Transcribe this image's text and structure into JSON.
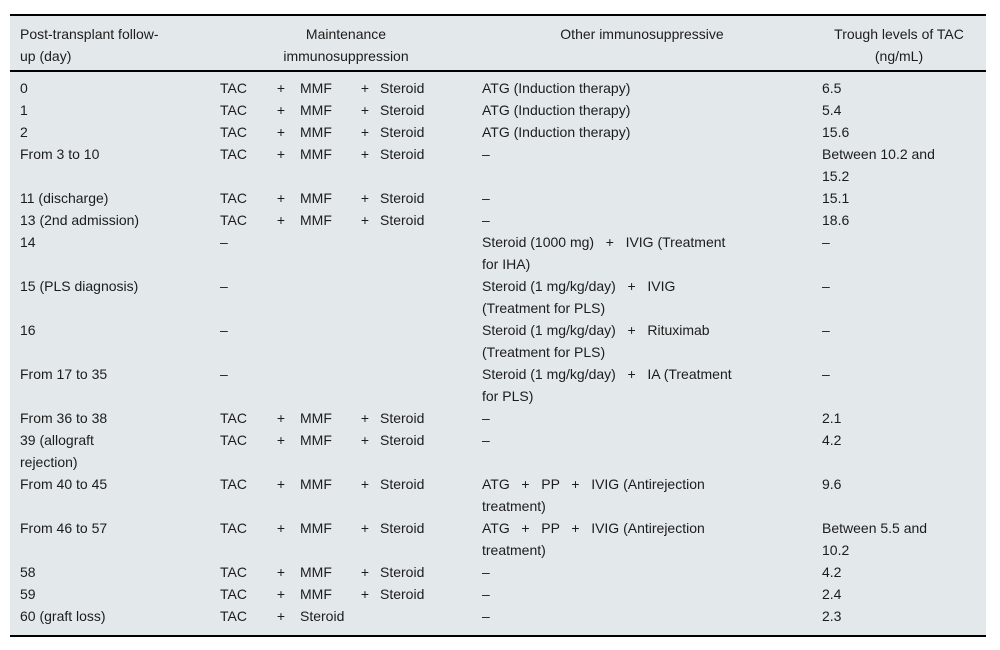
{
  "table": {
    "colors": {
      "background": "#e3e9eb",
      "rule": "#000000",
      "text": "#1c1c1c"
    },
    "header": {
      "day": "Post-transplant follow-\nup (day)",
      "maintenance": "Maintenance\nimmunosuppression",
      "other": "Other immunosuppressive",
      "trough": "Trough levels of TAC\n(ng/mL)"
    },
    "rows": [
      {
        "day": "0",
        "maintenance": [
          "TAC",
          "+",
          "MMF",
          "+",
          "Steroid"
        ],
        "other": "ATG (Induction therapy)",
        "trough": "6.5"
      },
      {
        "day": "1",
        "maintenance": [
          "TAC",
          "+",
          "MMF",
          "+",
          "Steroid"
        ],
        "other": "ATG (Induction therapy)",
        "trough": "5.4"
      },
      {
        "day": "2",
        "maintenance": [
          "TAC",
          "+",
          "MMF",
          "+",
          "Steroid"
        ],
        "other": "ATG (Induction therapy)",
        "trough": "15.6"
      },
      {
        "day": "From 3 to 10",
        "maintenance": [
          "TAC",
          "+",
          "MMF",
          "+",
          "Steroid"
        ],
        "other": "–",
        "trough": "Between 10.2 and\n15.2"
      },
      {
        "day": "11 (discharge)",
        "maintenance": [
          "TAC",
          "+",
          "MMF",
          "+",
          "Steroid"
        ],
        "other": "–",
        "trough": "15.1"
      },
      {
        "day": "13 (2nd admission)",
        "maintenance": [
          "TAC",
          "+",
          "MMF",
          "+",
          "Steroid"
        ],
        "other": "–",
        "trough": "18.6"
      },
      {
        "day": "14",
        "maintenance": [
          "–"
        ],
        "other": "Steroid (1000 mg)   +   IVIG (Treatment\nfor IHA)",
        "trough": "–"
      },
      {
        "day": "15 (PLS diagnosis)",
        "maintenance": [
          "–"
        ],
        "other": "Steroid (1 mg/kg/day)   +   IVIG\n(Treatment for PLS)",
        "trough": "–"
      },
      {
        "day": "16",
        "maintenance": [
          "–"
        ],
        "other": "Steroid (1 mg/kg/day)   +   Rituximab\n(Treatment for PLS)",
        "trough": "–"
      },
      {
        "day": "From 17 to 35",
        "maintenance": [
          "–"
        ],
        "other": "Steroid (1 mg/kg/day)   +   IA (Treatment\nfor PLS)",
        "trough": "–"
      },
      {
        "day": "From 36 to 38",
        "maintenance": [
          "TAC",
          "+",
          "MMF",
          "+",
          "Steroid"
        ],
        "other": "–",
        "trough": "2.1"
      },
      {
        "day": "39 (allograft\nrejection)",
        "maintenance": [
          "TAC",
          "+",
          "MMF",
          "+",
          "Steroid"
        ],
        "other": "–",
        "trough": "4.2"
      },
      {
        "day": "From 40 to 45",
        "maintenance": [
          "TAC",
          "+",
          "MMF",
          "+",
          "Steroid"
        ],
        "other": "ATG   +   PP   +   IVIG (Antirejection\ntreatment)",
        "trough": "9.6"
      },
      {
        "day": "From 46 to 57",
        "maintenance": [
          "TAC",
          "+",
          "MMF",
          "+",
          "Steroid"
        ],
        "other": "ATG   +   PP   +   IVIG (Antirejection\ntreatment)",
        "trough": "Between 5.5 and\n10.2"
      },
      {
        "day": "58",
        "maintenance": [
          "TAC",
          "+",
          "MMF",
          "+",
          "Steroid"
        ],
        "other": "–",
        "trough": "4.2"
      },
      {
        "day": "59",
        "maintenance": [
          "TAC",
          "+",
          "MMF",
          "+",
          "Steroid"
        ],
        "other": "–",
        "trough": "2.4"
      },
      {
        "day": "60 (graft loss)",
        "maintenance": [
          "TAC",
          "+",
          "Steroid"
        ],
        "other": "–",
        "trough": "2.3"
      }
    ]
  }
}
